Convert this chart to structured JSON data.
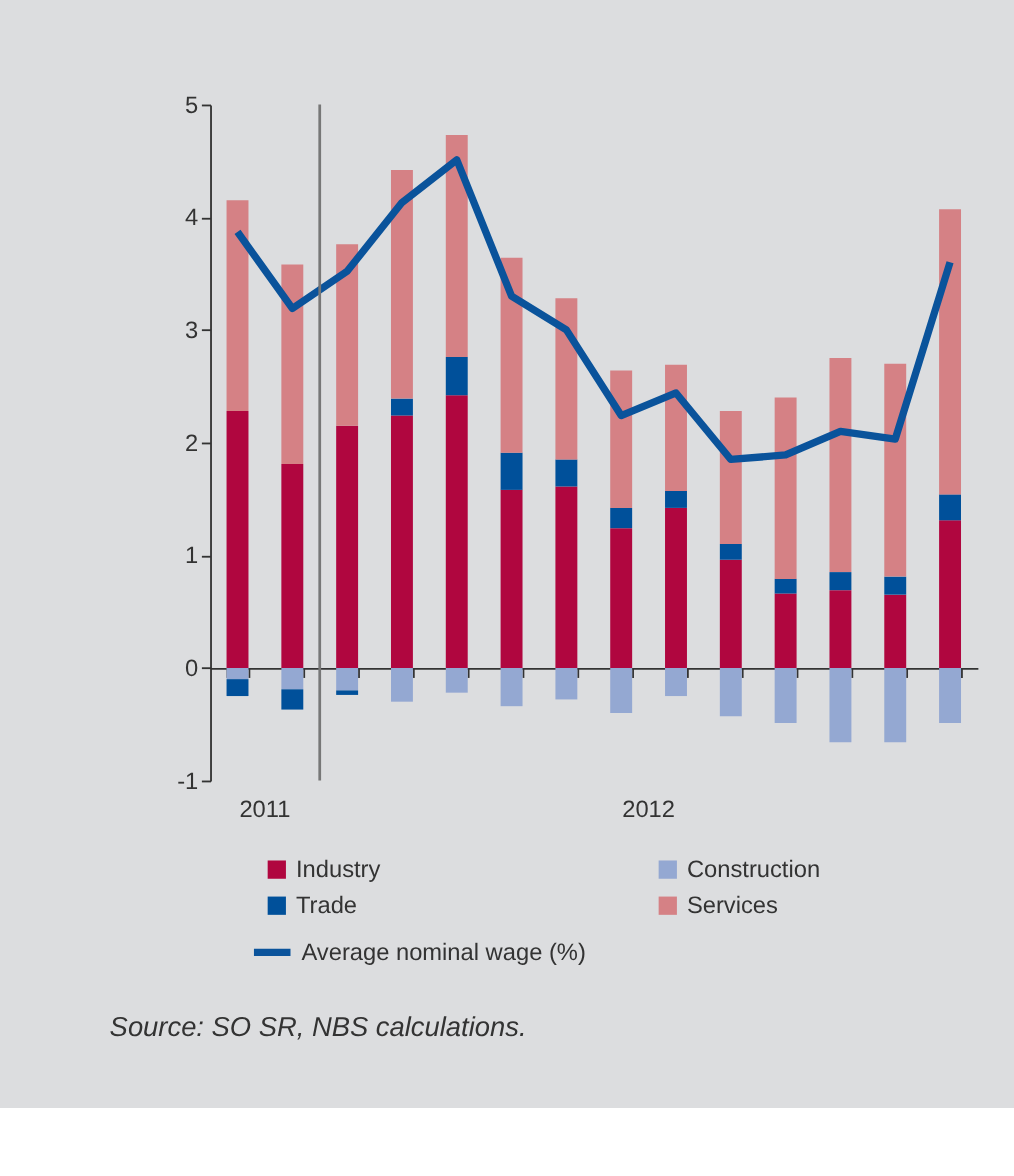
{
  "chart_data": {
    "type": "bar",
    "stacked": true,
    "categories": [
      null,
      null,
      null,
      null,
      null,
      null,
      null,
      null,
      null,
      null,
      null,
      null,
      null,
      null
    ],
    "series": [
      {
        "name": "Construction",
        "color": "#94a8d2",
        "values": [
          -0.1,
          -0.19,
          -0.2,
          -0.3,
          -0.22,
          -0.34,
          -0.28,
          -0.4,
          -0.25,
          -0.43,
          -0.49,
          -0.66,
          -0.66,
          -0.49
        ]
      },
      {
        "name": "Industry",
        "color": "#b0063f",
        "values": [
          2.28,
          1.81,
          2.15,
          2.24,
          2.42,
          1.58,
          1.61,
          1.24,
          1.42,
          0.96,
          0.66,
          0.69,
          0.65,
          1.31
        ]
      },
      {
        "name": "Trade",
        "color": "#00509a",
        "values": [
          -0.15,
          -0.18,
          -0.04,
          0.15,
          0.34,
          0.33,
          0.24,
          0.18,
          0.15,
          0.14,
          0.13,
          0.16,
          0.16,
          0.23
        ]
      },
      {
        "name": "Services",
        "color": "#d58185",
        "values": [
          1.87,
          1.77,
          1.61,
          2.03,
          1.97,
          1.73,
          1.43,
          1.22,
          1.12,
          1.18,
          1.61,
          1.9,
          1.89,
          2.53
        ]
      },
      {
        "name": "Average nominal wage (%)",
        "type": "line",
        "color": "#0a539b",
        "values": [
          3.87,
          3.19,
          3.52,
          4.13,
          4.51,
          3.3,
          3.0,
          2.24,
          2.44,
          1.85,
          1.89,
          2.1,
          2.03,
          3.6
        ]
      }
    ],
    "ylim": [
      -1,
      5
    ],
    "yticks": [
      -1,
      0,
      1,
      2,
      3,
      4,
      5
    ],
    "legend": "bottom",
    "annotations": [
      "2011",
      "2012",
      "Source: SO SR, NBS calculations."
    ]
  }
}
